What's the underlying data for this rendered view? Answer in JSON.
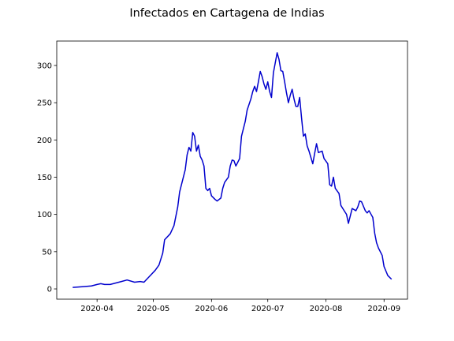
{
  "chart_data": {
    "type": "line",
    "title": "Infectados en Cartagena de Indias",
    "x": [
      18340,
      18345,
      18350,
      18353,
      18355,
      18357,
      18360,
      18363,
      18366,
      18369,
      18373,
      18376,
      18378,
      18381,
      18384,
      18386,
      18388,
      18389,
      18392,
      18394,
      18396,
      18397,
      18399,
      18400,
      18401,
      18402,
      18403,
      18404,
      18405,
      18406,
      18407,
      18408,
      18409,
      18410,
      18411,
      18412,
      18413,
      18414,
      18416,
      18417,
      18419,
      18420,
      18421,
      18423,
      18424,
      18425,
      18426,
      18427,
      18429,
      18430,
      18432,
      18433,
      18435,
      18436,
      18437,
      18438,
      18439,
      18440,
      18441,
      18442,
      18443,
      18444,
      18445,
      18446,
      18447,
      18449,
      18450,
      18451,
      18452,
      18453,
      18454,
      18455,
      18456,
      18457,
      18458,
      18459,
      18460,
      18461,
      18462,
      18463,
      18464,
      18465,
      18466,
      18468,
      18469,
      18470,
      18471,
      18473,
      18474,
      18476,
      18477,
      18478,
      18479,
      18480,
      18482,
      18483,
      18484,
      18486,
      18487,
      18488,
      18489,
      18491,
      18492,
      18493,
      18494,
      18496,
      18497,
      18498,
      18500,
      18501,
      18502,
      18503,
      18505,
      18506,
      18507,
      18508,
      18510
    ],
    "series": [
      {
        "color": "#0000cd",
        "values": [
          2,
          3,
          4,
          6,
          7,
          6,
          6,
          8,
          10,
          12,
          9,
          10,
          9,
          17,
          25,
          32,
          48,
          66,
          74,
          85,
          110,
          130,
          150,
          160,
          180,
          190,
          185,
          210,
          205,
          185,
          193,
          178,
          173,
          165,
          135,
          132,
          135,
          125,
          120,
          118,
          122,
          135,
          143,
          150,
          165,
          173,
          172,
          165,
          175,
          205,
          225,
          240,
          255,
          265,
          272,
          265,
          278,
          292,
          285,
          275,
          268,
          278,
          265,
          257,
          290,
          317,
          308,
          293,
          292,
          278,
          263,
          250,
          260,
          268,
          255,
          245,
          245,
          257,
          230,
          205,
          208,
          192,
          185,
          168,
          182,
          195,
          183,
          185,
          175,
          168,
          140,
          138,
          150,
          135,
          128,
          112,
          108,
          100,
          88,
          98,
          108,
          105,
          110,
          118,
          117,
          105,
          102,
          105,
          96,
          75,
          62,
          55,
          45,
          30,
          24,
          18,
          13
        ]
      }
    ],
    "xlim": [
      18331.5,
      18518.5
    ],
    "xticks": [
      {
        "value": 18353,
        "label": "2020-04"
      },
      {
        "value": 18383,
        "label": "2020-05"
      },
      {
        "value": 18414,
        "label": "2020-06"
      },
      {
        "value": 18444,
        "label": "2020-07"
      },
      {
        "value": 18475,
        "label": "2020-08"
      },
      {
        "value": 18506,
        "label": "2020-09"
      }
    ],
    "ylim": [
      -13.75,
      332.75
    ],
    "yticks": [
      0,
      50,
      100,
      150,
      200,
      250,
      300
    ],
    "grid": false
  }
}
